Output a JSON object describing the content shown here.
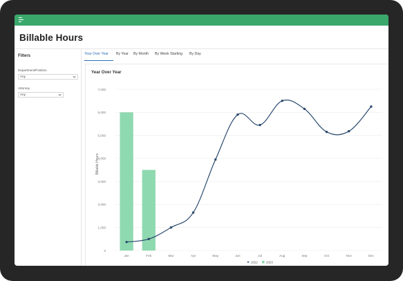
{
  "app": {
    "title": "Billable Hours"
  },
  "filters": {
    "title": "Filters",
    "department": {
      "label": "Department/Position",
      "value": "Any"
    },
    "attorney": {
      "label": "Attorney",
      "value": "Any"
    }
  },
  "tabs": [
    {
      "label": "Year Over Year",
      "active": true
    },
    {
      "label": "By Year",
      "active": false
    },
    {
      "label": "By Month",
      "active": false
    },
    {
      "label": "By Week Starting",
      "active": false
    },
    {
      "label": "By Day",
      "active": false
    }
  ],
  "panel": {
    "title": "Year Over Year"
  },
  "colors": {
    "accent": "#3aa86b",
    "line": "#2b4a6f",
    "bar": "#8fd9b0",
    "tab_active": "#2c6fb5"
  },
  "chart_data": {
    "type": "bar+line",
    "categories": [
      "Jan",
      "Feb",
      "Mar",
      "Apr",
      "May",
      "Jun",
      "Jul",
      "Aug",
      "Sep",
      "Oct",
      "Nov",
      "Dec"
    ],
    "ylabel": "Billable Hours",
    "ylim": [
      0,
      7000
    ],
    "yticks": [
      "0",
      "1,000",
      "2,000",
      "3,000",
      "4,000",
      "5,000",
      "6,000",
      "7,000"
    ],
    "grid": true,
    "legend_position": "bottom",
    "series": [
      {
        "name": "2022",
        "type": "line",
        "values": [
          370,
          500,
          1000,
          1650,
          3950,
          5900,
          5450,
          6500,
          6150,
          5150,
          5180,
          6250
        ]
      },
      {
        "name": "2023",
        "type": "bar",
        "values": [
          6000,
          3500,
          null,
          null,
          null,
          null,
          null,
          null,
          null,
          null,
          null,
          null
        ]
      }
    ]
  }
}
